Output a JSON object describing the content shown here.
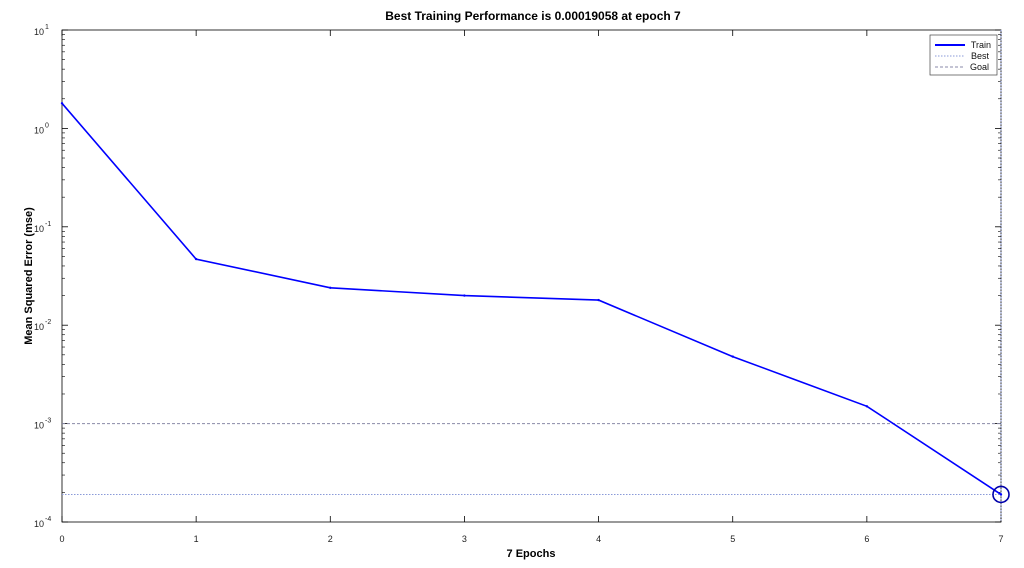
{
  "chart_data": {
    "type": "line",
    "title": "Best Training Performance is 0.00019058 at epoch 7",
    "xlabel": "7 Epochs",
    "ylabel": "Mean Squared Error  (mse)",
    "y_scale": "log",
    "xlim": [
      0,
      7
    ],
    "ylim": [
      0.0001,
      10
    ],
    "x_ticks": [
      "0",
      "1",
      "2",
      "3",
      "4",
      "5",
      "6",
      "7"
    ],
    "y_ticks": [
      {
        "base": "10",
        "exp": "1",
        "value": 10
      },
      {
        "base": "10",
        "exp": "0",
        "value": 1
      },
      {
        "base": "10",
        "exp": "-1",
        "value": 0.1
      },
      {
        "base": "10",
        "exp": "-2",
        "value": 0.01
      },
      {
        "base": "10",
        "exp": "-3",
        "value": 0.001
      },
      {
        "base": "10",
        "exp": "-4",
        "value": 0.0001
      }
    ],
    "grid": false,
    "legend_position": "top-right",
    "series": [
      {
        "name": "Train",
        "color": "#0000ff",
        "style": "solid",
        "x": [
          0,
          1,
          2,
          3,
          4,
          5,
          6,
          7
        ],
        "values": [
          1.8,
          0.047,
          0.024,
          0.02,
          0.018,
          0.0048,
          0.0015,
          0.00019058
        ]
      },
      {
        "name": "Best",
        "color": "#8a9ad8",
        "style": "dotted",
        "x_line": 7,
        "y_line": 0.00019058,
        "marker": {
          "x": 7,
          "y": 0.00019058,
          "shape": "circle"
        }
      },
      {
        "name": "Goal",
        "color": "#8a8aa8",
        "style": "dashed",
        "y_line": 0.001
      }
    ]
  }
}
